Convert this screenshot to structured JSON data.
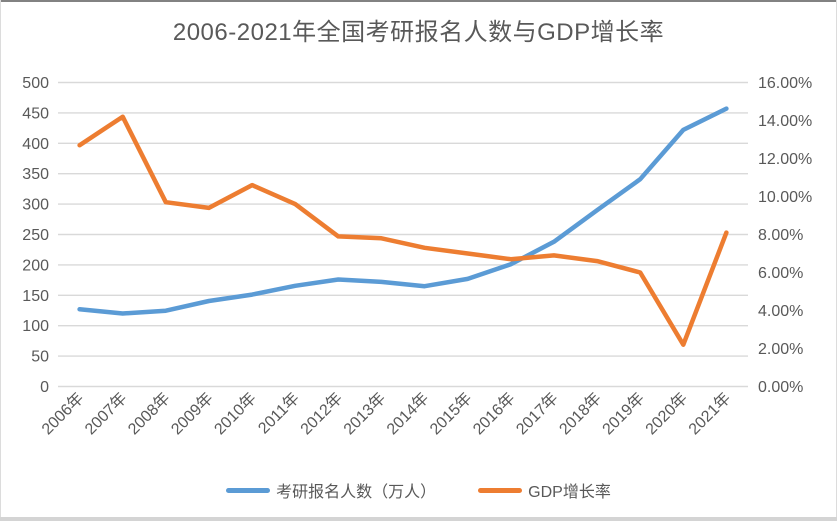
{
  "window": {
    "border_top_color": "#828282",
    "border_bottom_color": "#d4d4d4",
    "border_side_color": "#dcdcdc",
    "background": "#ffffff"
  },
  "chart_data": {
    "type": "line",
    "title": "2006-2021年全国考研报名人数与GDP增长率",
    "title_color": "#595959",
    "text_color": "#595959",
    "gridline_color": "#d9d9d9",
    "grid": true,
    "legend_position": "bottom",
    "categories": [
      "2006年",
      "2007年",
      "2008年",
      "2009年",
      "2010年",
      "2011年",
      "2012年",
      "2013年",
      "2014年",
      "2015年",
      "2016年",
      "2017年",
      "2018年",
      "2019年",
      "2020年",
      "2021年"
    ],
    "series": [
      {
        "name": "考研报名人数（万人）",
        "axis": "left",
        "color": "#5B9BD5",
        "values": [
          127,
          120,
          124.6,
          140.6,
          151.1,
          165.6,
          176,
          172,
          164.9,
          177,
          201,
          238,
          290,
          341,
          422,
          457
        ]
      },
      {
        "name": "GDP增长率",
        "axis": "right",
        "color": "#ED7D31",
        "values": [
          12.7,
          14.2,
          9.7,
          9.4,
          10.6,
          9.6,
          7.9,
          7.8,
          7.3,
          7.0,
          6.7,
          6.9,
          6.6,
          6.0,
          2.2,
          8.1
        ]
      }
    ],
    "left_axis": {
      "min": 0,
      "max": 500,
      "step": 50,
      "tick_labels": [
        "0",
        "50",
        "100",
        "150",
        "200",
        "250",
        "300",
        "350",
        "400",
        "450",
        "500"
      ]
    },
    "right_axis": {
      "min": 0,
      "max": 16,
      "step": 2,
      "tick_labels": [
        "0.00%",
        "2.00%",
        "4.00%",
        "6.00%",
        "8.00%",
        "10.00%",
        "12.00%",
        "14.00%",
        "16.00%"
      ]
    }
  }
}
